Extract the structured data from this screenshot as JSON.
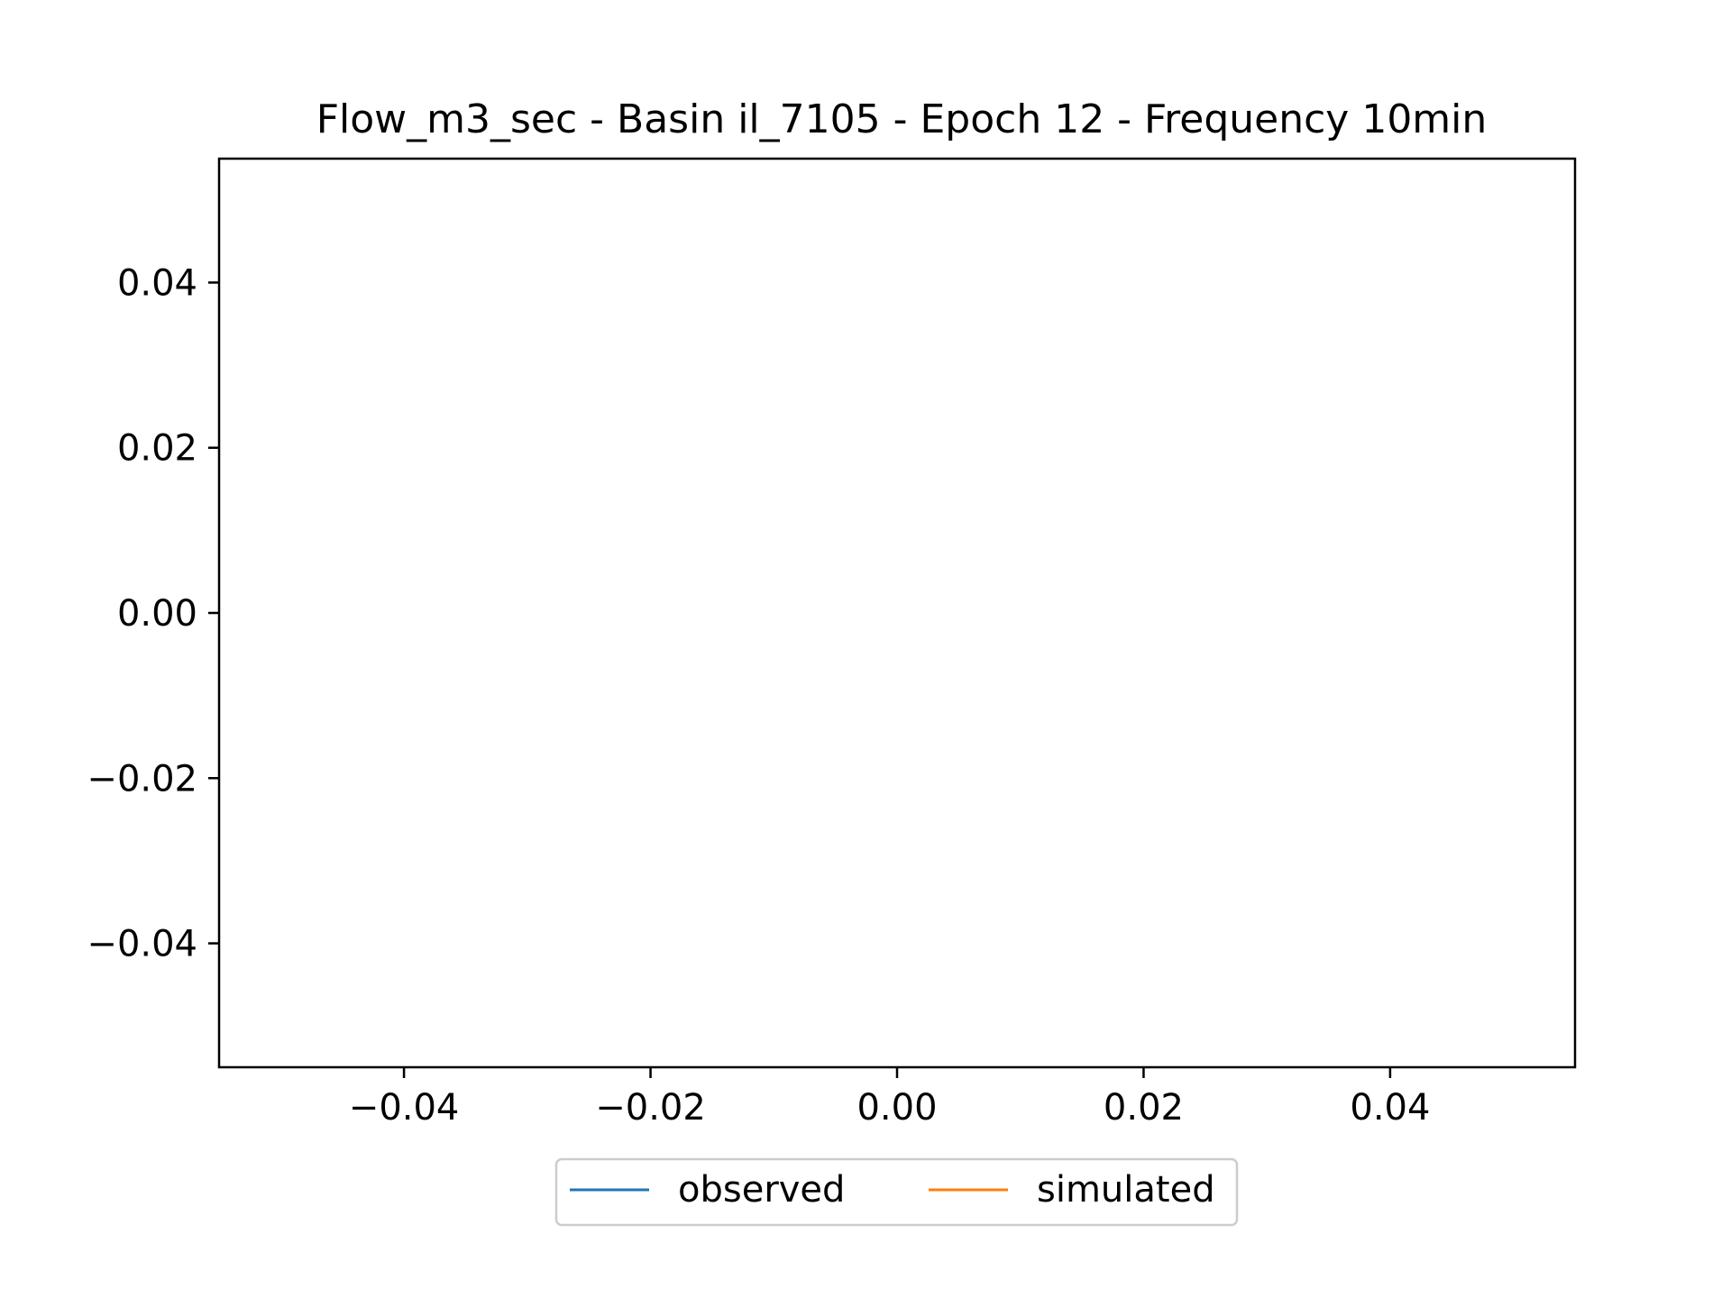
{
  "chart_data": {
    "type": "line",
    "title": "Flow_m3_sec - Basin il_7105 - Epoch 12 - Frequency 10min",
    "xlabel": "",
    "ylabel": "",
    "xlim": [
      -0.055,
      0.055
    ],
    "ylim": [
      -0.055,
      0.055
    ],
    "x_ticks": [
      -0.04,
      -0.02,
      0.0,
      0.02,
      0.04
    ],
    "y_ticks": [
      -0.04,
      -0.02,
      0.0,
      0.02,
      0.04
    ],
    "x_tick_labels": [
      "−0.04",
      "−0.02",
      "0.00",
      "0.02",
      "0.04"
    ],
    "y_tick_labels": [
      "−0.04",
      "−0.02",
      "0.00",
      "0.02",
      "0.04"
    ],
    "grid": false,
    "legend": {
      "placement": "bottom-center-outside",
      "columns": 2
    },
    "series": [
      {
        "name": "observed",
        "color": "#1f77b4",
        "x": [],
        "y": []
      },
      {
        "name": "simulated",
        "color": "#ff7f0e",
        "x": [],
        "y": []
      }
    ]
  }
}
